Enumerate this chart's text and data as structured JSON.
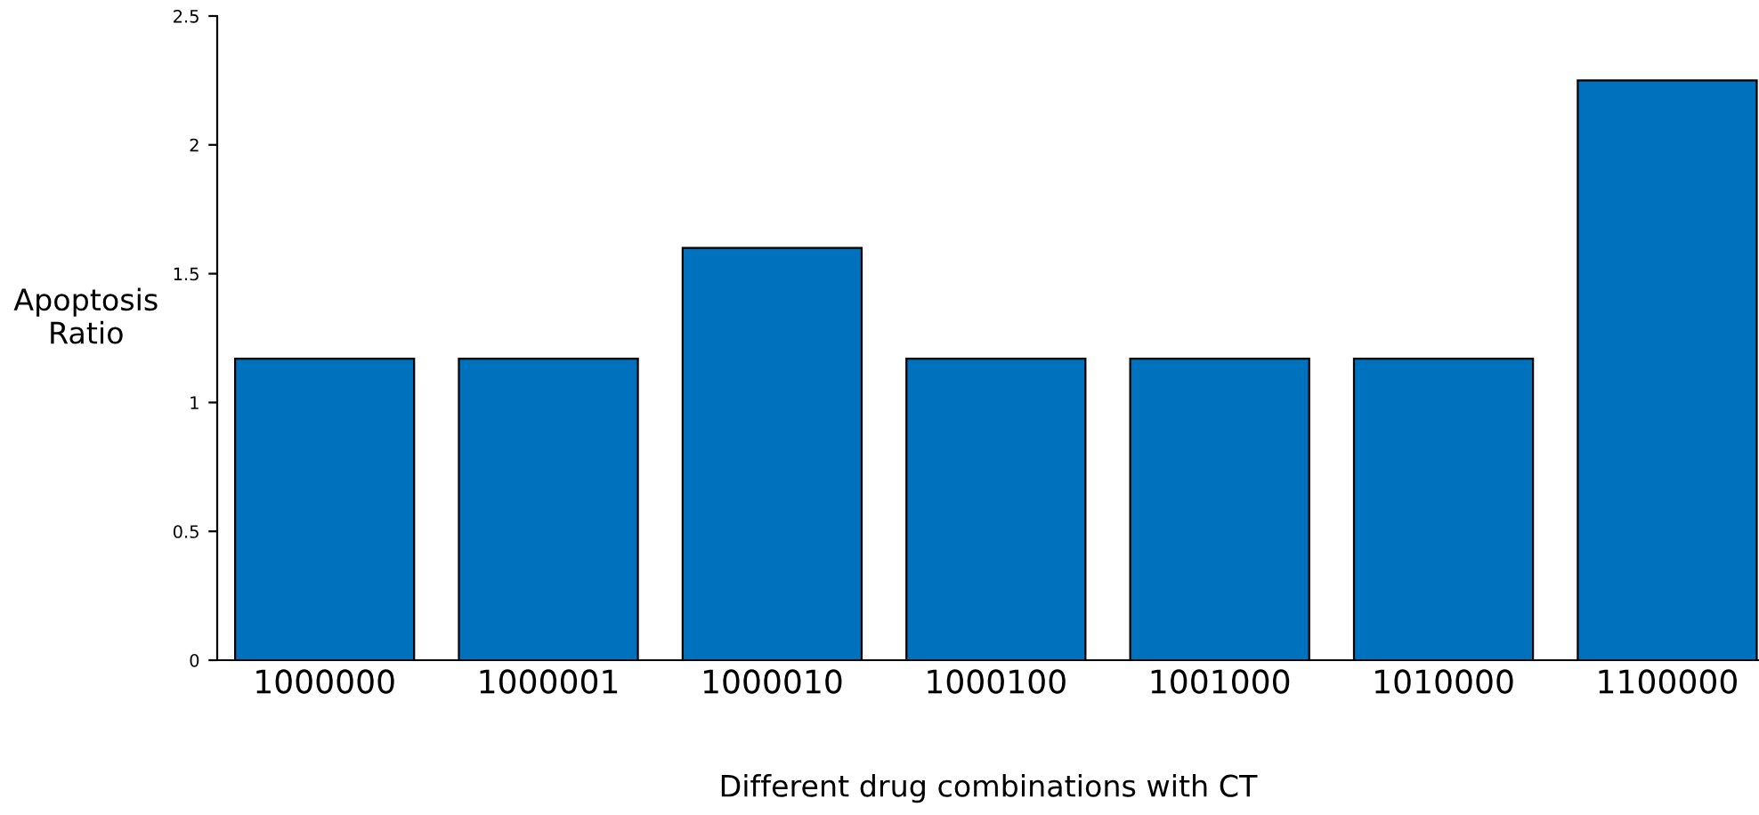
{
  "chart_data": {
    "type": "bar",
    "xlabel": "Different drug combinations with CT",
    "ylabel": "Apoptosis\nRatio",
    "categories": [
      "1000000",
      "1000001",
      "1000010",
      "1000100",
      "1001000",
      "1010000",
      "1100000"
    ],
    "series": [
      {
        "color": "#0072bd",
        "values": [
          1.17,
          1.17,
          1.6,
          1.17,
          1.17,
          1.17,
          2.25
        ]
      }
    ],
    "ylim": [
      0,
      2.5
    ],
    "yticks": [
      0,
      0.5,
      1,
      1.5,
      2,
      2.5
    ],
    "grid": false,
    "legend": false
  }
}
